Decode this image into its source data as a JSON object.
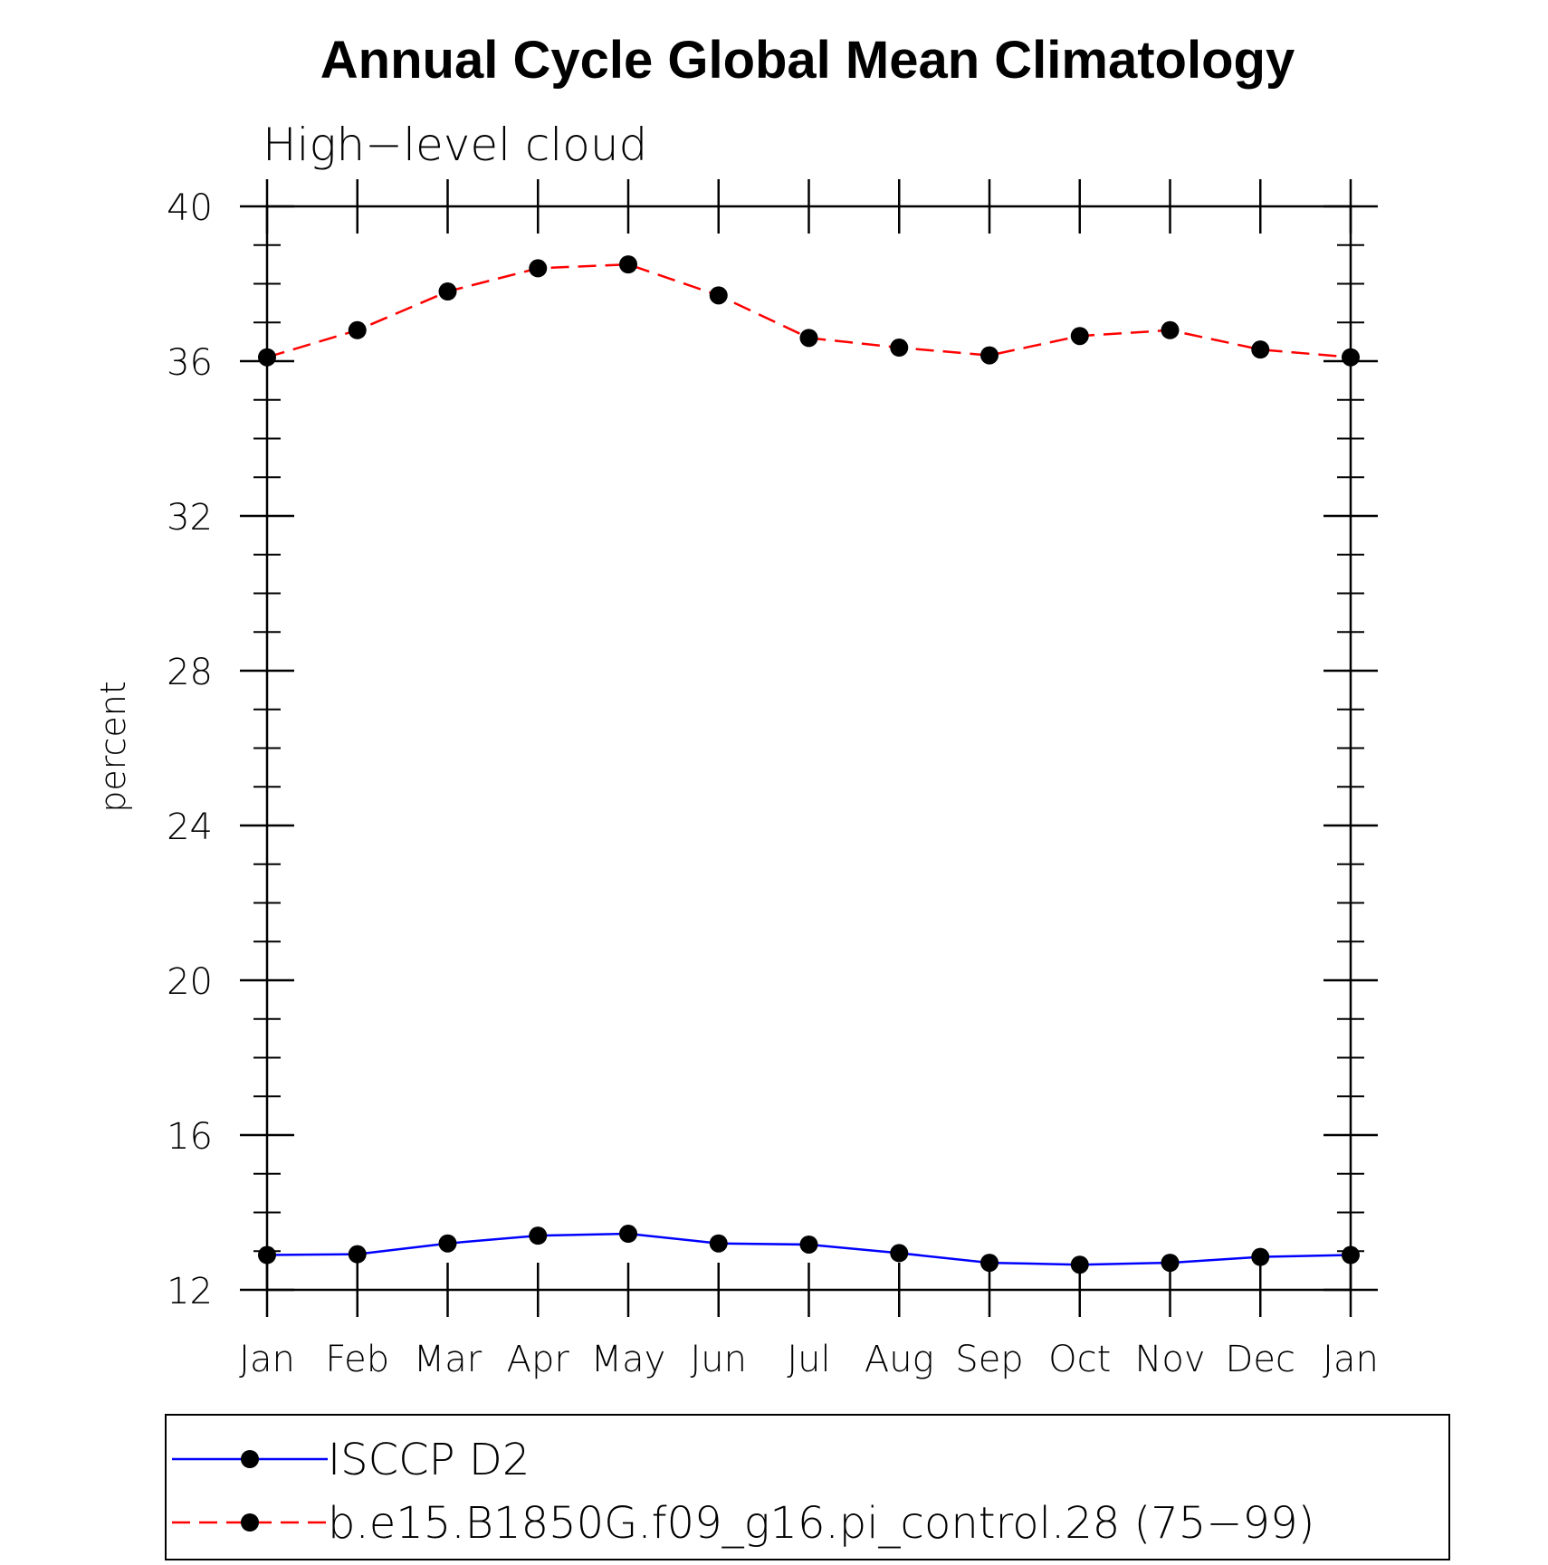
{
  "chart_data": {
    "type": "line",
    "title": "Annual Cycle Global Mean Climatology",
    "subtitle": "High−level cloud",
    "xlabel": "",
    "ylabel": "percent",
    "categories": [
      "Jan",
      "Feb",
      "Mar",
      "Apr",
      "May",
      "Jun",
      "Jul",
      "Aug",
      "Sep",
      "Oct",
      "Nov",
      "Dec",
      "Jan"
    ],
    "ylim": [
      12,
      40
    ],
    "yticks": [
      12,
      16,
      20,
      24,
      28,
      32,
      36,
      40
    ],
    "series": [
      {
        "name": "ISCCP D2",
        "color": "#0000ff",
        "line_style": "solid",
        "marker": "filled-circle",
        "values": [
          12.9,
          12.92,
          13.2,
          13.4,
          13.45,
          13.2,
          13.17,
          12.95,
          12.7,
          12.65,
          12.7,
          12.85,
          12.9
        ]
      },
      {
        "name": "b.e15.B1850G.f09_g16.pi_control.28 (75−99)",
        "color": "#ff0000",
        "line_style": "dashed",
        "marker": "filled-circle",
        "values": [
          36.1,
          36.8,
          37.8,
          38.4,
          38.5,
          37.7,
          36.6,
          36.35,
          36.15,
          36.65,
          36.8,
          36.3,
          36.1
        ]
      }
    ],
    "grid": false,
    "legend": {
      "position": "bottom"
    }
  }
}
